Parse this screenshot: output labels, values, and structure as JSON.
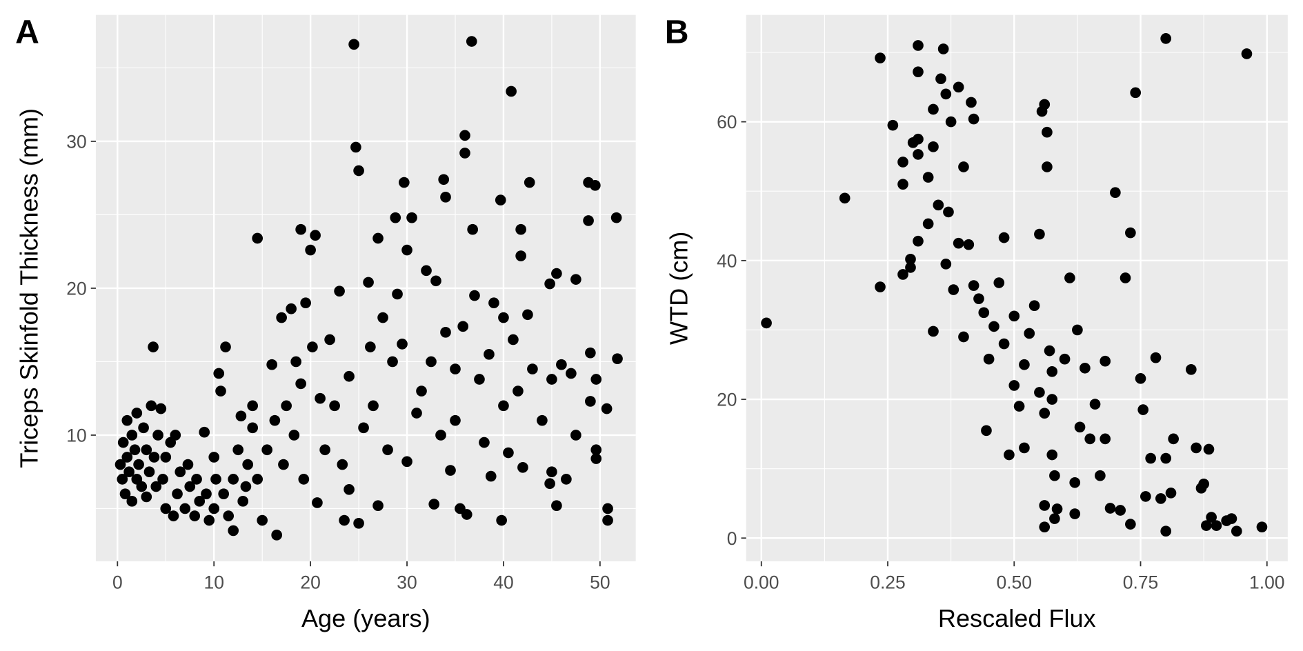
{
  "chart_data": [
    {
      "type": "scatter",
      "panel_label": "A",
      "x_label": "Age (years)",
      "y_label": "Triceps Skinfold Thickness (mm)",
      "color": "#000000",
      "grid": true,
      "xlim": [
        -2.24,
        53.7
      ],
      "ylim": [
        1.41,
        38.6
      ],
      "xticks": [
        0,
        10,
        20,
        30,
        40,
        50
      ],
      "yticks": [
        10,
        20,
        30
      ],
      "xminor": [
        5,
        15,
        25,
        35,
        45
      ],
      "yminor": [
        5,
        15,
        25,
        35
      ],
      "x": [
        0.3,
        0.5,
        0.6,
        0.8,
        1,
        1,
        1.2,
        1.5,
        1.5,
        1.8,
        2,
        2,
        2.2,
        2.5,
        2.7,
        3,
        3,
        3.3,
        3.5,
        3.7,
        3.8,
        4,
        4.2,
        4.5,
        4.7,
        5,
        5,
        5.5,
        5.8,
        6,
        6.2,
        6.5,
        7,
        7.3,
        7.5,
        8,
        8.2,
        8.5,
        9,
        9.2,
        9.5,
        10,
        10,
        10.2,
        10.5,
        10.7,
        11,
        11.2,
        11.5,
        12,
        12,
        12.5,
        12.8,
        13,
        13.3,
        13.5,
        14,
        14,
        14.5,
        14.5,
        15,
        15.5,
        16,
        16.3,
        16.5,
        17,
        17.2,
        17.5,
        18,
        18.3,
        18.5,
        19,
        19,
        19.3,
        19.5,
        20,
        20.2,
        20.5,
        20.7,
        21,
        21.5,
        22,
        22.5,
        23,
        23.3,
        23.5,
        24,
        24,
        24.5,
        24.7,
        25,
        25,
        25.5,
        26,
        26.2,
        26.5,
        27,
        27,
        27.5,
        28,
        28.5,
        28.8,
        29,
        29.5,
        29.7,
        30,
        30,
        30.5,
        31,
        31.5,
        32,
        32.5,
        32.8,
        33,
        33.5,
        33.8,
        34,
        34,
        34.5,
        35,
        35,
        35.5,
        35.8,
        36,
        36,
        36.2,
        36.7,
        36.8,
        37,
        37.5,
        38,
        38.5,
        38.7,
        39,
        39.7,
        39.8,
        40,
        40,
        40.5,
        40.8,
        41,
        41.5,
        41.8,
        41.8,
        42,
        42.5,
        42.7,
        43,
        44,
        44.8,
        44.8,
        45,
        45,
        45.5,
        45.5,
        46,
        46.5,
        47,
        47.5,
        47.5,
        48.8,
        48.8,
        49,
        49,
        49.5,
        49.6,
        49.6,
        49.6,
        50.7,
        50.8,
        50.8,
        51.7,
        51.8
      ],
      "y": [
        8,
        7,
        9.5,
        6,
        11,
        8.5,
        7.5,
        10,
        5.5,
        9,
        7,
        11.5,
        8,
        6.5,
        10.5,
        9,
        5.8,
        7.5,
        12,
        16,
        8.5,
        6.5,
        10,
        11.8,
        7,
        8.5,
        5,
        9.5,
        4.5,
        10,
        6,
        7.5,
        5,
        8,
        6.5,
        4.5,
        7,
        5.5,
        10.2,
        6,
        4.2,
        8.5,
        5,
        7,
        14.2,
        13,
        6,
        16,
        4.5,
        7,
        3.5,
        9,
        11.3,
        5.5,
        6.5,
        8,
        10.5,
        12,
        23.4,
        7,
        4.2,
        9,
        14.8,
        11,
        3.2,
        18,
        8,
        12,
        18.6,
        10,
        15,
        24,
        13.5,
        7,
        19,
        22.6,
        16,
        23.6,
        5.4,
        12.5,
        9,
        16.5,
        12,
        19.8,
        8,
        4.2,
        6.3,
        14,
        36.6,
        29.6,
        4,
        28,
        10.5,
        20.4,
        16,
        12,
        23.4,
        5.2,
        18,
        9,
        15,
        24.8,
        19.6,
        16.2,
        27.2,
        22.6,
        8.2,
        24.8,
        11.5,
        13,
        21.2,
        15,
        5.3,
        20.5,
        10,
        27.4,
        26.2,
        17,
        7.6,
        14.5,
        11,
        5,
        17.4,
        30.4,
        29.2,
        4.6,
        36.8,
        24,
        19.5,
        13.8,
        9.5,
        15.5,
        7.2,
        19,
        26,
        4.2,
        12,
        18,
        8.8,
        33.4,
        16.5,
        13,
        24,
        22.2,
        7.8,
        18.2,
        27.2,
        14.5,
        11,
        20.3,
        6.7,
        7.5,
        13.8,
        21,
        5.2,
        14.8,
        7,
        14.2,
        20.6,
        10,
        24.6,
        27.2,
        15.6,
        12.3,
        27,
        13.8,
        9,
        8.4,
        11.8,
        5,
        4.2,
        24.8,
        15.2
      ]
    },
    {
      "type": "scatter",
      "panel_label": "B",
      "x_label": "Rescaled Flux",
      "y_label": "WTD (cm)",
      "color": "#000000",
      "grid": true,
      "xlim": [
        -0.03,
        1.041
      ],
      "ylim": [
        -3.35,
        75.4
      ],
      "xticks": [
        {
          "value": 0,
          "label": "0.00"
        },
        {
          "value": 0.25,
          "label": "0.25"
        },
        {
          "value": 0.5,
          "label": "0.50"
        },
        {
          "value": 0.75,
          "label": "0.75"
        },
        {
          "value": 1,
          "label": "1.00"
        }
      ],
      "yticks": [
        0,
        20,
        40,
        60
      ],
      "xminor": [
        0.125,
        0.375,
        0.625,
        0.875
      ],
      "yminor": [
        10,
        30,
        50,
        70
      ],
      "x": [
        0.01,
        0.165,
        0.235,
        0.235,
        0.26,
        0.28,
        0.28,
        0.28,
        0.295,
        0.295,
        0.3,
        0.31,
        0.31,
        0.31,
        0.31,
        0.31,
        0.33,
        0.33,
        0.34,
        0.34,
        0.34,
        0.35,
        0.355,
        0.36,
        0.365,
        0.365,
        0.37,
        0.375,
        0.38,
        0.39,
        0.39,
        0.4,
        0.4,
        0.41,
        0.415,
        0.42,
        0.42,
        0.43,
        0.44,
        0.445,
        0.45,
        0.46,
        0.47,
        0.48,
        0.48,
        0.49,
        0.5,
        0.5,
        0.51,
        0.52,
        0.52,
        0.53,
        0.54,
        0.55,
        0.555,
        0.56,
        0.565,
        0.565,
        0.55,
        0.56,
        0.56,
        0.56,
        0.57,
        0.575,
        0.575,
        0.575,
        0.58,
        0.58,
        0.585,
        0.6,
        0.61,
        0.62,
        0.62,
        0.625,
        0.63,
        0.64,
        0.65,
        0.66,
        0.67,
        0.68,
        0.68,
        0.69,
        0.7,
        0.71,
        0.72,
        0.73,
        0.74,
        0.73,
        0.75,
        0.755,
        0.76,
        0.77,
        0.78,
        0.79,
        0.8,
        0.8,
        0.8,
        0.81,
        0.815,
        0.85,
        0.86,
        0.87,
        0.875,
        0.88,
        0.885,
        0.89,
        0.9,
        0.92,
        0.93,
        0.94,
        0.96,
        0.99
      ],
      "y": [
        31,
        49,
        69.2,
        36.2,
        59.5,
        54.2,
        51,
        38,
        39,
        40.2,
        57,
        71,
        67.2,
        57.5,
        55.3,
        42.8,
        52,
        45.3,
        61.8,
        56.4,
        29.8,
        48,
        66.2,
        70.5,
        64,
        39.5,
        47,
        60,
        35.8,
        65,
        42.5,
        53.5,
        29,
        42.3,
        62.8,
        60.4,
        36.4,
        34.5,
        32.5,
        15.5,
        25.8,
        30.5,
        36.8,
        43.3,
        28,
        12,
        22,
        32,
        19,
        25,
        13,
        29.5,
        33.5,
        43.8,
        61.5,
        62.5,
        58.5,
        53.5,
        21,
        18,
        4.7,
        1.6,
        27,
        24,
        20,
        12,
        9,
        2.8,
        4.2,
        25.8,
        37.5,
        8,
        3.5,
        30,
        16,
        24.5,
        14.3,
        19.3,
        9,
        25.5,
        14.3,
        4.3,
        49.8,
        4,
        37.5,
        44,
        64.2,
        2,
        23,
        18.5,
        6,
        11.5,
        26,
        5.7,
        72,
        11.5,
        1,
        6.5,
        14.3,
        24.3,
        13,
        7.2,
        7.8,
        1.8,
        12.8,
        3,
        1.8,
        2.5,
        2.8,
        1,
        69.8,
        1.6
      ]
    }
  ]
}
